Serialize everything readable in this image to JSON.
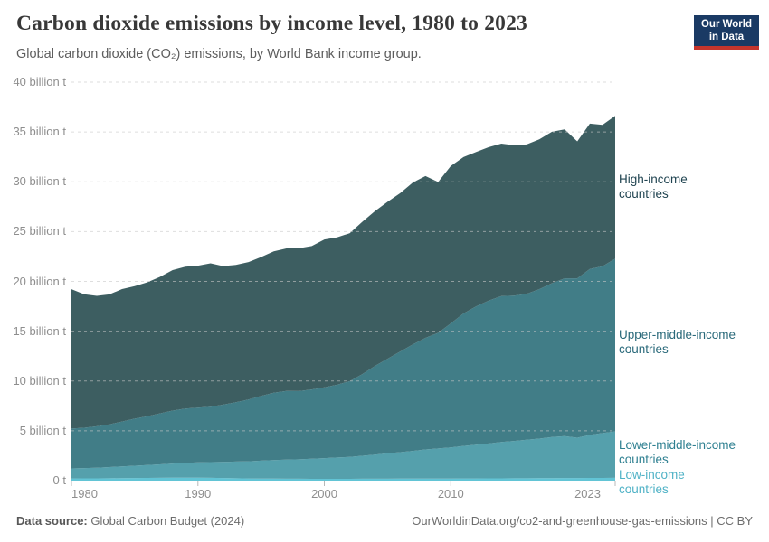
{
  "header": {
    "title": "Carbon dioxide emissions by income level, 1980 to 2023",
    "subtitle": "Global carbon dioxide (CO₂) emissions, by World Bank income group.",
    "logo": {
      "line1": "Our World",
      "line2": "in Data",
      "bg_color": "#1a3a64",
      "accent_color": "#c5352c"
    }
  },
  "footer": {
    "source_label": "Data source:",
    "source_value": " Global Carbon Budget (2024)",
    "right_text": "OurWorldinData.org/co2-and-greenhouse-gas-emissions | CC BY"
  },
  "chart_data": {
    "type": "area",
    "stacked": true,
    "title": "Carbon dioxide emissions by income level, 1980 to 2023",
    "xlabel": "",
    "ylabel": "",
    "xlim": [
      1980,
      2023
    ],
    "ylim": [
      0,
      40
    ],
    "grid": "dashed-horizontal",
    "legend_position": "right-of-area",
    "unit": "billion tonnes CO2",
    "x": [
      1980,
      1981,
      1982,
      1983,
      1984,
      1985,
      1986,
      1987,
      1988,
      1989,
      1990,
      1991,
      1992,
      1993,
      1994,
      1995,
      1996,
      1997,
      1998,
      1999,
      2000,
      2001,
      2002,
      2003,
      2004,
      2005,
      2006,
      2007,
      2008,
      2009,
      2010,
      2011,
      2012,
      2013,
      2014,
      2015,
      2016,
      2017,
      2018,
      2019,
      2020,
      2021,
      2022,
      2023
    ],
    "series": [
      {
        "name": "low_income",
        "label": "Low-income\ncountries",
        "color": "#62c4d5",
        "label_color": "#4fb2c6",
        "values": [
          0.22,
          0.23,
          0.23,
          0.24,
          0.25,
          0.26,
          0.27,
          0.28,
          0.29,
          0.3,
          0.3,
          0.28,
          0.26,
          0.24,
          0.22,
          0.2,
          0.2,
          0.19,
          0.19,
          0.18,
          0.18,
          0.18,
          0.18,
          0.19,
          0.19,
          0.19,
          0.2,
          0.2,
          0.21,
          0.21,
          0.21,
          0.22,
          0.22,
          0.23,
          0.23,
          0.24,
          0.24,
          0.25,
          0.25,
          0.26,
          0.26,
          0.27,
          0.27,
          0.28
        ]
      },
      {
        "name": "lower_middle_income",
        "label": "Lower-middle-income\ncountries",
        "color": "#55a0ac",
        "label_color": "#2d7f90",
        "values": [
          1.0,
          1.03,
          1.07,
          1.12,
          1.18,
          1.24,
          1.29,
          1.35,
          1.42,
          1.48,
          1.53,
          1.58,
          1.62,
          1.67,
          1.72,
          1.8,
          1.87,
          1.92,
          1.95,
          2.02,
          2.08,
          2.14,
          2.2,
          2.3,
          2.42,
          2.55,
          2.66,
          2.78,
          2.92,
          3.02,
          3.12,
          3.26,
          3.38,
          3.5,
          3.65,
          3.74,
          3.86,
          3.97,
          4.12,
          4.2,
          4.05,
          4.32,
          4.5,
          4.65
        ]
      },
      {
        "name": "upper_middle_income",
        "label": "Upper-middle-income\ncountries",
        "color": "#417d87",
        "label_color": "#29697a",
        "values": [
          4.0,
          4.05,
          4.15,
          4.28,
          4.5,
          4.72,
          4.9,
          5.12,
          5.32,
          5.45,
          5.5,
          5.55,
          5.75,
          5.95,
          6.2,
          6.5,
          6.75,
          6.9,
          6.85,
          6.95,
          7.1,
          7.3,
          7.6,
          8.2,
          8.9,
          9.5,
          10.1,
          10.7,
          11.2,
          11.6,
          12.45,
          13.3,
          13.9,
          14.35,
          14.65,
          14.6,
          14.65,
          15.0,
          15.45,
          15.85,
          16.0,
          16.65,
          16.75,
          17.35
        ]
      },
      {
        "name": "high_income",
        "label": "High-income\ncountries",
        "color": "#3d5e61",
        "label_color": "#1f4350",
        "values": [
          14.0,
          13.4,
          13.1,
          13.05,
          13.3,
          13.3,
          13.45,
          13.7,
          14.1,
          14.25,
          14.25,
          14.4,
          13.9,
          13.8,
          13.8,
          13.95,
          14.2,
          14.3,
          14.35,
          14.4,
          14.85,
          14.8,
          14.85,
          15.3,
          15.55,
          15.75,
          15.9,
          16.25,
          16.25,
          15.15,
          15.8,
          15.7,
          15.5,
          15.4,
          15.3,
          15.1,
          15.0,
          15.05,
          15.2,
          14.95,
          13.75,
          14.6,
          14.2,
          14.35
        ]
      }
    ],
    "yticks": [
      {
        "value": 0,
        "label": "0 t"
      },
      {
        "value": 5,
        "label": "5 billion t"
      },
      {
        "value": 10,
        "label": "10 billion t"
      },
      {
        "value": 15,
        "label": "15 billion t"
      },
      {
        "value": 20,
        "label": "20 billion t"
      },
      {
        "value": 25,
        "label": "25 billion t"
      },
      {
        "value": 30,
        "label": "30 billion t"
      },
      {
        "value": 35,
        "label": "35 billion t"
      },
      {
        "value": 40,
        "label": "40 billion t"
      }
    ],
    "xticks": [
      {
        "value": 1980,
        "label": "1980",
        "anchor": "start"
      },
      {
        "value": 1990,
        "label": "1990",
        "anchor": "middle"
      },
      {
        "value": 2000,
        "label": "2000",
        "anchor": "middle"
      },
      {
        "value": 2010,
        "label": "2010",
        "anchor": "middle"
      },
      {
        "value": 2023,
        "label": "2023",
        "anchor": "end"
      }
    ]
  }
}
